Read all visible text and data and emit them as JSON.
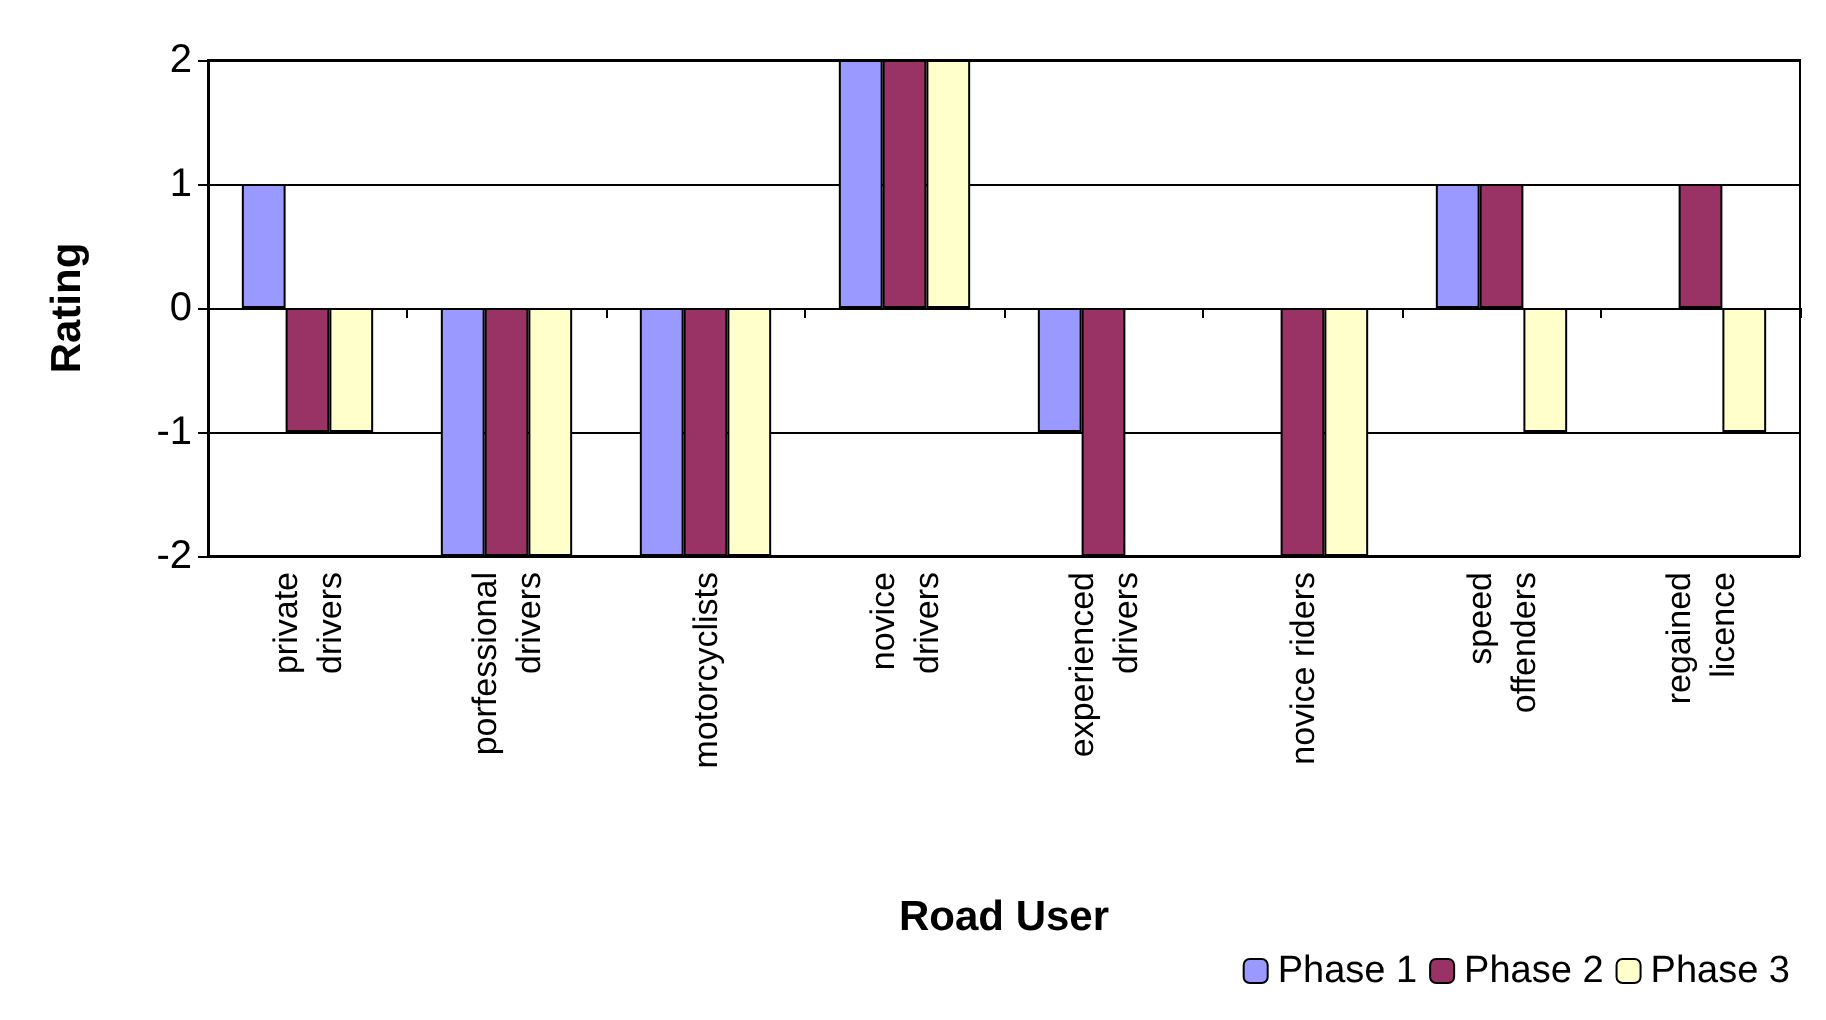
{
  "chart_data": {
    "type": "bar",
    "xlabel": "Road User",
    "ylabel": "Rating",
    "categories": [
      "private\ndrivers",
      "porfessional\ndrivers",
      "motorcyclists",
      "novice\ndrivers",
      "experienced\ndrivers",
      "novice riders",
      "speed\noffenders",
      "regained\nlicence"
    ],
    "series": [
      {
        "name": "Phase 1",
        "color": "#9999ff",
        "values": [
          1,
          -2,
          -2,
          2,
          -1,
          null,
          1,
          null
        ]
      },
      {
        "name": "Phase 2",
        "color": "#993366",
        "values": [
          -1,
          -2,
          -2,
          2,
          -2,
          -2,
          1,
          1
        ]
      },
      {
        "name": "Phase 3",
        "color": "#ffffcc",
        "values": [
          -1,
          -2,
          -2,
          2,
          null,
          -2,
          -1,
          -1
        ]
      }
    ],
    "ylim": [
      -2,
      2
    ],
    "yticks": [
      -2,
      -1,
      0,
      1,
      2
    ],
    "grid": "y",
    "legend": "bottom right"
  }
}
